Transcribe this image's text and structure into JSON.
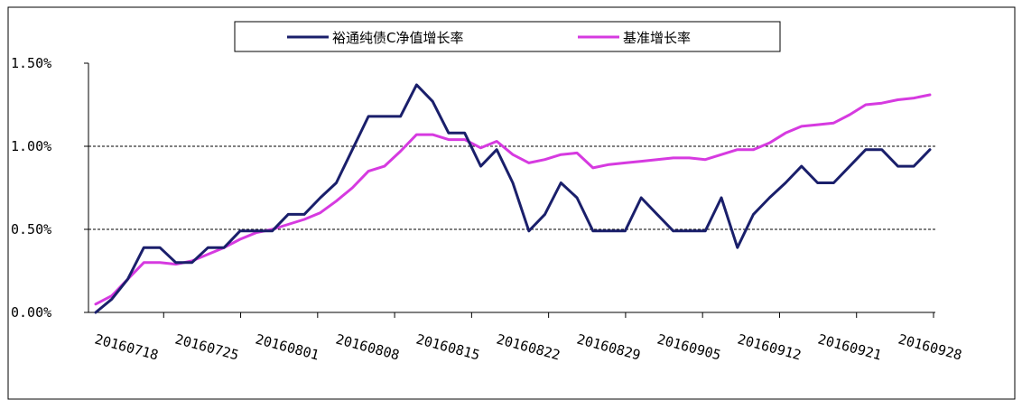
{
  "chart_data": {
    "type": "line",
    "title": "",
    "xlabel": "",
    "ylabel": "",
    "ylim": [
      0,
      1.5
    ],
    "y_ticks": [
      "0.00%",
      "0.50%",
      "1.00%",
      "1.50%"
    ],
    "y_tick_values": [
      0,
      0.5,
      1.0,
      1.5
    ],
    "x_tick_labels": [
      "20160718",
      "20160725",
      "20160801",
      "20160808",
      "20160815",
      "20160822",
      "20160829",
      "20160905",
      "20160912",
      "20160921",
      "20160928"
    ],
    "grid": "dashed horizontal at 0.50% and 1.00%",
    "legend": "top-center",
    "series": [
      {
        "name": "裕通纯债C净值增长率",
        "color": "#1a1f6b",
        "values": [
          0.0,
          0.08,
          0.2,
          0.39,
          0.39,
          0.3,
          0.3,
          0.39,
          0.39,
          0.49,
          0.49,
          0.49,
          0.59,
          0.59,
          0.69,
          0.78,
          0.98,
          1.18,
          1.18,
          1.18,
          1.37,
          1.27,
          1.08,
          1.08,
          0.88,
          0.98,
          0.78,
          0.49,
          0.59,
          0.78,
          0.69,
          0.49,
          0.49,
          0.49,
          0.69,
          0.59,
          0.49,
          0.49,
          0.49,
          0.69,
          0.39,
          0.59,
          0.69,
          0.78,
          0.88,
          0.78,
          0.78,
          0.88,
          0.98,
          0.98,
          0.88,
          0.88,
          0.98
        ]
      },
      {
        "name": "基准增长率",
        "color": "#d63ae0",
        "values": [
          0.05,
          0.1,
          0.2,
          0.3,
          0.3,
          0.29,
          0.31,
          0.35,
          0.39,
          0.44,
          0.48,
          0.5,
          0.53,
          0.56,
          0.6,
          0.67,
          0.75,
          0.85,
          0.88,
          0.97,
          1.07,
          1.07,
          1.04,
          1.04,
          0.99,
          1.03,
          0.95,
          0.9,
          0.92,
          0.95,
          0.96,
          0.87,
          0.89,
          0.9,
          0.91,
          0.92,
          0.93,
          0.93,
          0.92,
          0.95,
          0.98,
          0.98,
          1.02,
          1.08,
          1.12,
          1.13,
          1.14,
          1.19,
          1.25,
          1.26,
          1.28,
          1.29,
          1.31
        ]
      }
    ]
  }
}
